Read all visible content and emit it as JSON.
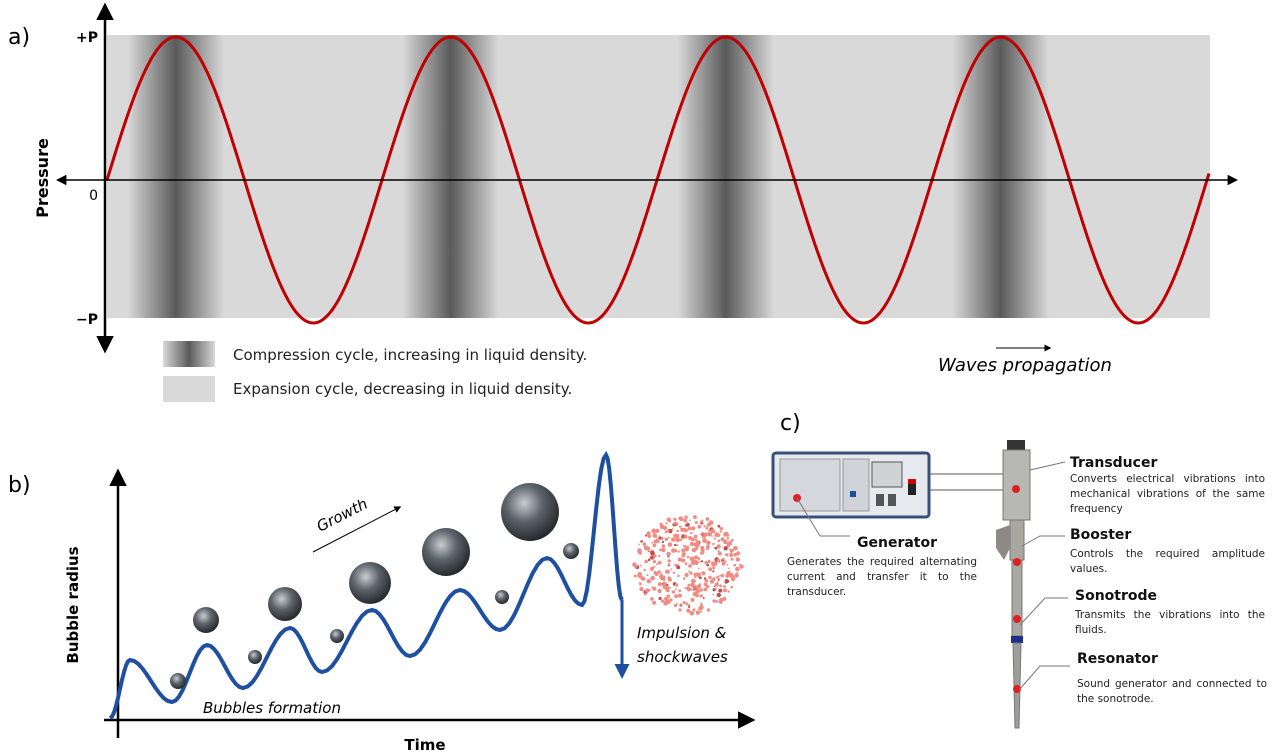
{
  "panel_a": {
    "label": "a)",
    "y_axis_title": "Pressure",
    "y_labels": [
      "+P",
      "0",
      "−P"
    ],
    "legend": [
      "Compression cycle, increasing in liquid density.",
      "Expansion cycle, decreasing in liquid density."
    ],
    "annotation": "Waves propagation"
  },
  "panel_b": {
    "label": "b)",
    "y_axis_title": "Bubble radius",
    "x_axis_title": "Time",
    "growth": "Growth",
    "formation": "Bubbles formation",
    "impulsion": [
      "Impulsion &",
      "shockwaves"
    ]
  },
  "panel_c": {
    "label": "c)",
    "components": [
      {
        "name": "Generator",
        "description": "Generates the required alternating current and transfer it to the transducer."
      },
      {
        "name": "Transducer",
        "description": "Converts electrical vibrations into mechanical vibrations of the same frequency"
      },
      {
        "name": "Booster",
        "description": "Controls the required amplitude values."
      },
      {
        "name": "Sonotrode",
        "description": "Transmits the vibrations into the fluids."
      },
      {
        "name": "Resonator",
        "description": "Sound generator and connected to the sonotrode."
      }
    ]
  }
}
